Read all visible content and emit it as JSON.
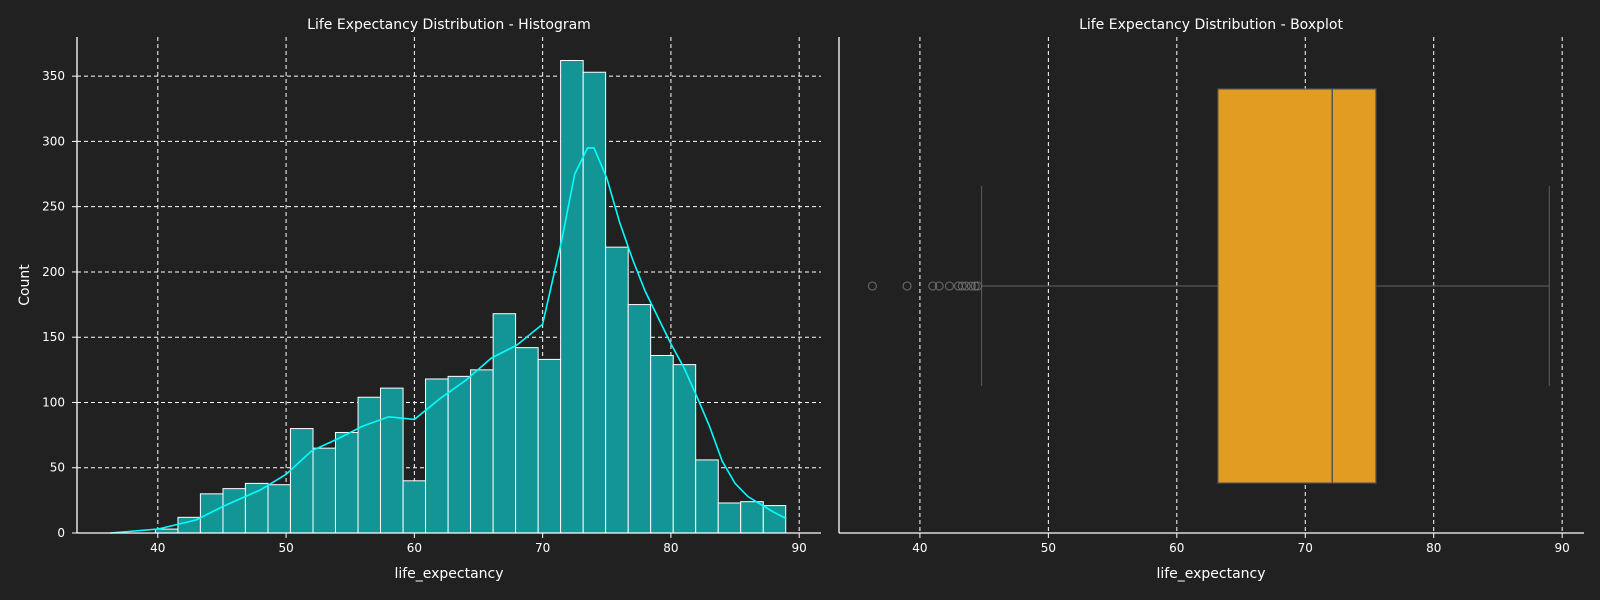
{
  "colors": {
    "background": "#212121",
    "axes_text": "#ffffff",
    "histogram_bar": "#139595",
    "kde_line": "#00ffff",
    "box_fill": "#e39c22",
    "box_lines": "#555555"
  },
  "chart_data": [
    {
      "type": "bar",
      "subtype": "histogram",
      "title": "Life Expectancy Distribution - Histogram",
      "xlabel": "life_expectancy",
      "ylabel": "Count",
      "xlim": [
        33.7,
        91.7
      ],
      "ylim": [
        0,
        380
      ],
      "xticks": [
        40,
        50,
        60,
        70,
        80,
        90
      ],
      "yticks": [
        0,
        50,
        100,
        150,
        200,
        250,
        300,
        350
      ],
      "grid": true,
      "bins": {
        "edges": [
          36.3,
          38.06,
          39.81,
          41.57,
          43.32,
          45.08,
          46.83,
          48.59,
          50.34,
          52.1,
          53.85,
          55.61,
          57.36,
          59.12,
          60.87,
          62.63,
          64.38,
          66.14,
          67.89,
          69.65,
          71.4,
          73.16,
          74.91,
          76.67,
          78.42,
          80.18,
          81.93,
          83.69,
          85.44,
          87.2,
          88.95
        ],
        "counts": [
          0,
          0,
          3,
          12,
          30,
          34,
          38,
          37,
          80,
          65,
          77,
          104,
          111,
          40,
          118,
          120,
          125,
          168,
          142,
          133,
          362,
          353,
          219,
          175,
          136,
          129,
          56,
          23,
          24,
          21
        ]
      },
      "kde": {
        "x": [
          36.3,
          40,
          43,
          45,
          48,
          50,
          52,
          54,
          56,
          58,
          60,
          62,
          64,
          66,
          68,
          70,
          71.5,
          72.5,
          73.5,
          74,
          75,
          76,
          77,
          78,
          79,
          80,
          81,
          82,
          83,
          84,
          85,
          86,
          87,
          88,
          89
        ],
        "y": [
          0,
          3,
          10,
          20,
          33,
          45,
          63,
          72,
          82,
          89,
          87,
          103,
          117,
          134,
          144,
          160,
          225,
          275,
          295,
          295,
          272,
          238,
          210,
          185,
          165,
          145,
          127,
          105,
          82,
          55,
          38,
          28,
          22,
          16,
          11
        ]
      }
    },
    {
      "type": "box",
      "title": "Life Expectancy Distribution - Boxplot",
      "xlabel": "life_expectancy",
      "xlim": [
        33.7,
        91.7
      ],
      "xticks": [
        40,
        50,
        60,
        70,
        80,
        90
      ],
      "grid": true,
      "box": {
        "whisker_low": 44.8,
        "q1": 63.2,
        "median": 72.1,
        "q3": 75.5,
        "whisker_high": 89.0
      },
      "outliers": [
        36.3,
        39.0,
        41.0,
        41.5,
        42.3,
        43.0,
        43.3,
        43.6,
        44.0,
        44.3,
        44.5
      ]
    }
  ]
}
